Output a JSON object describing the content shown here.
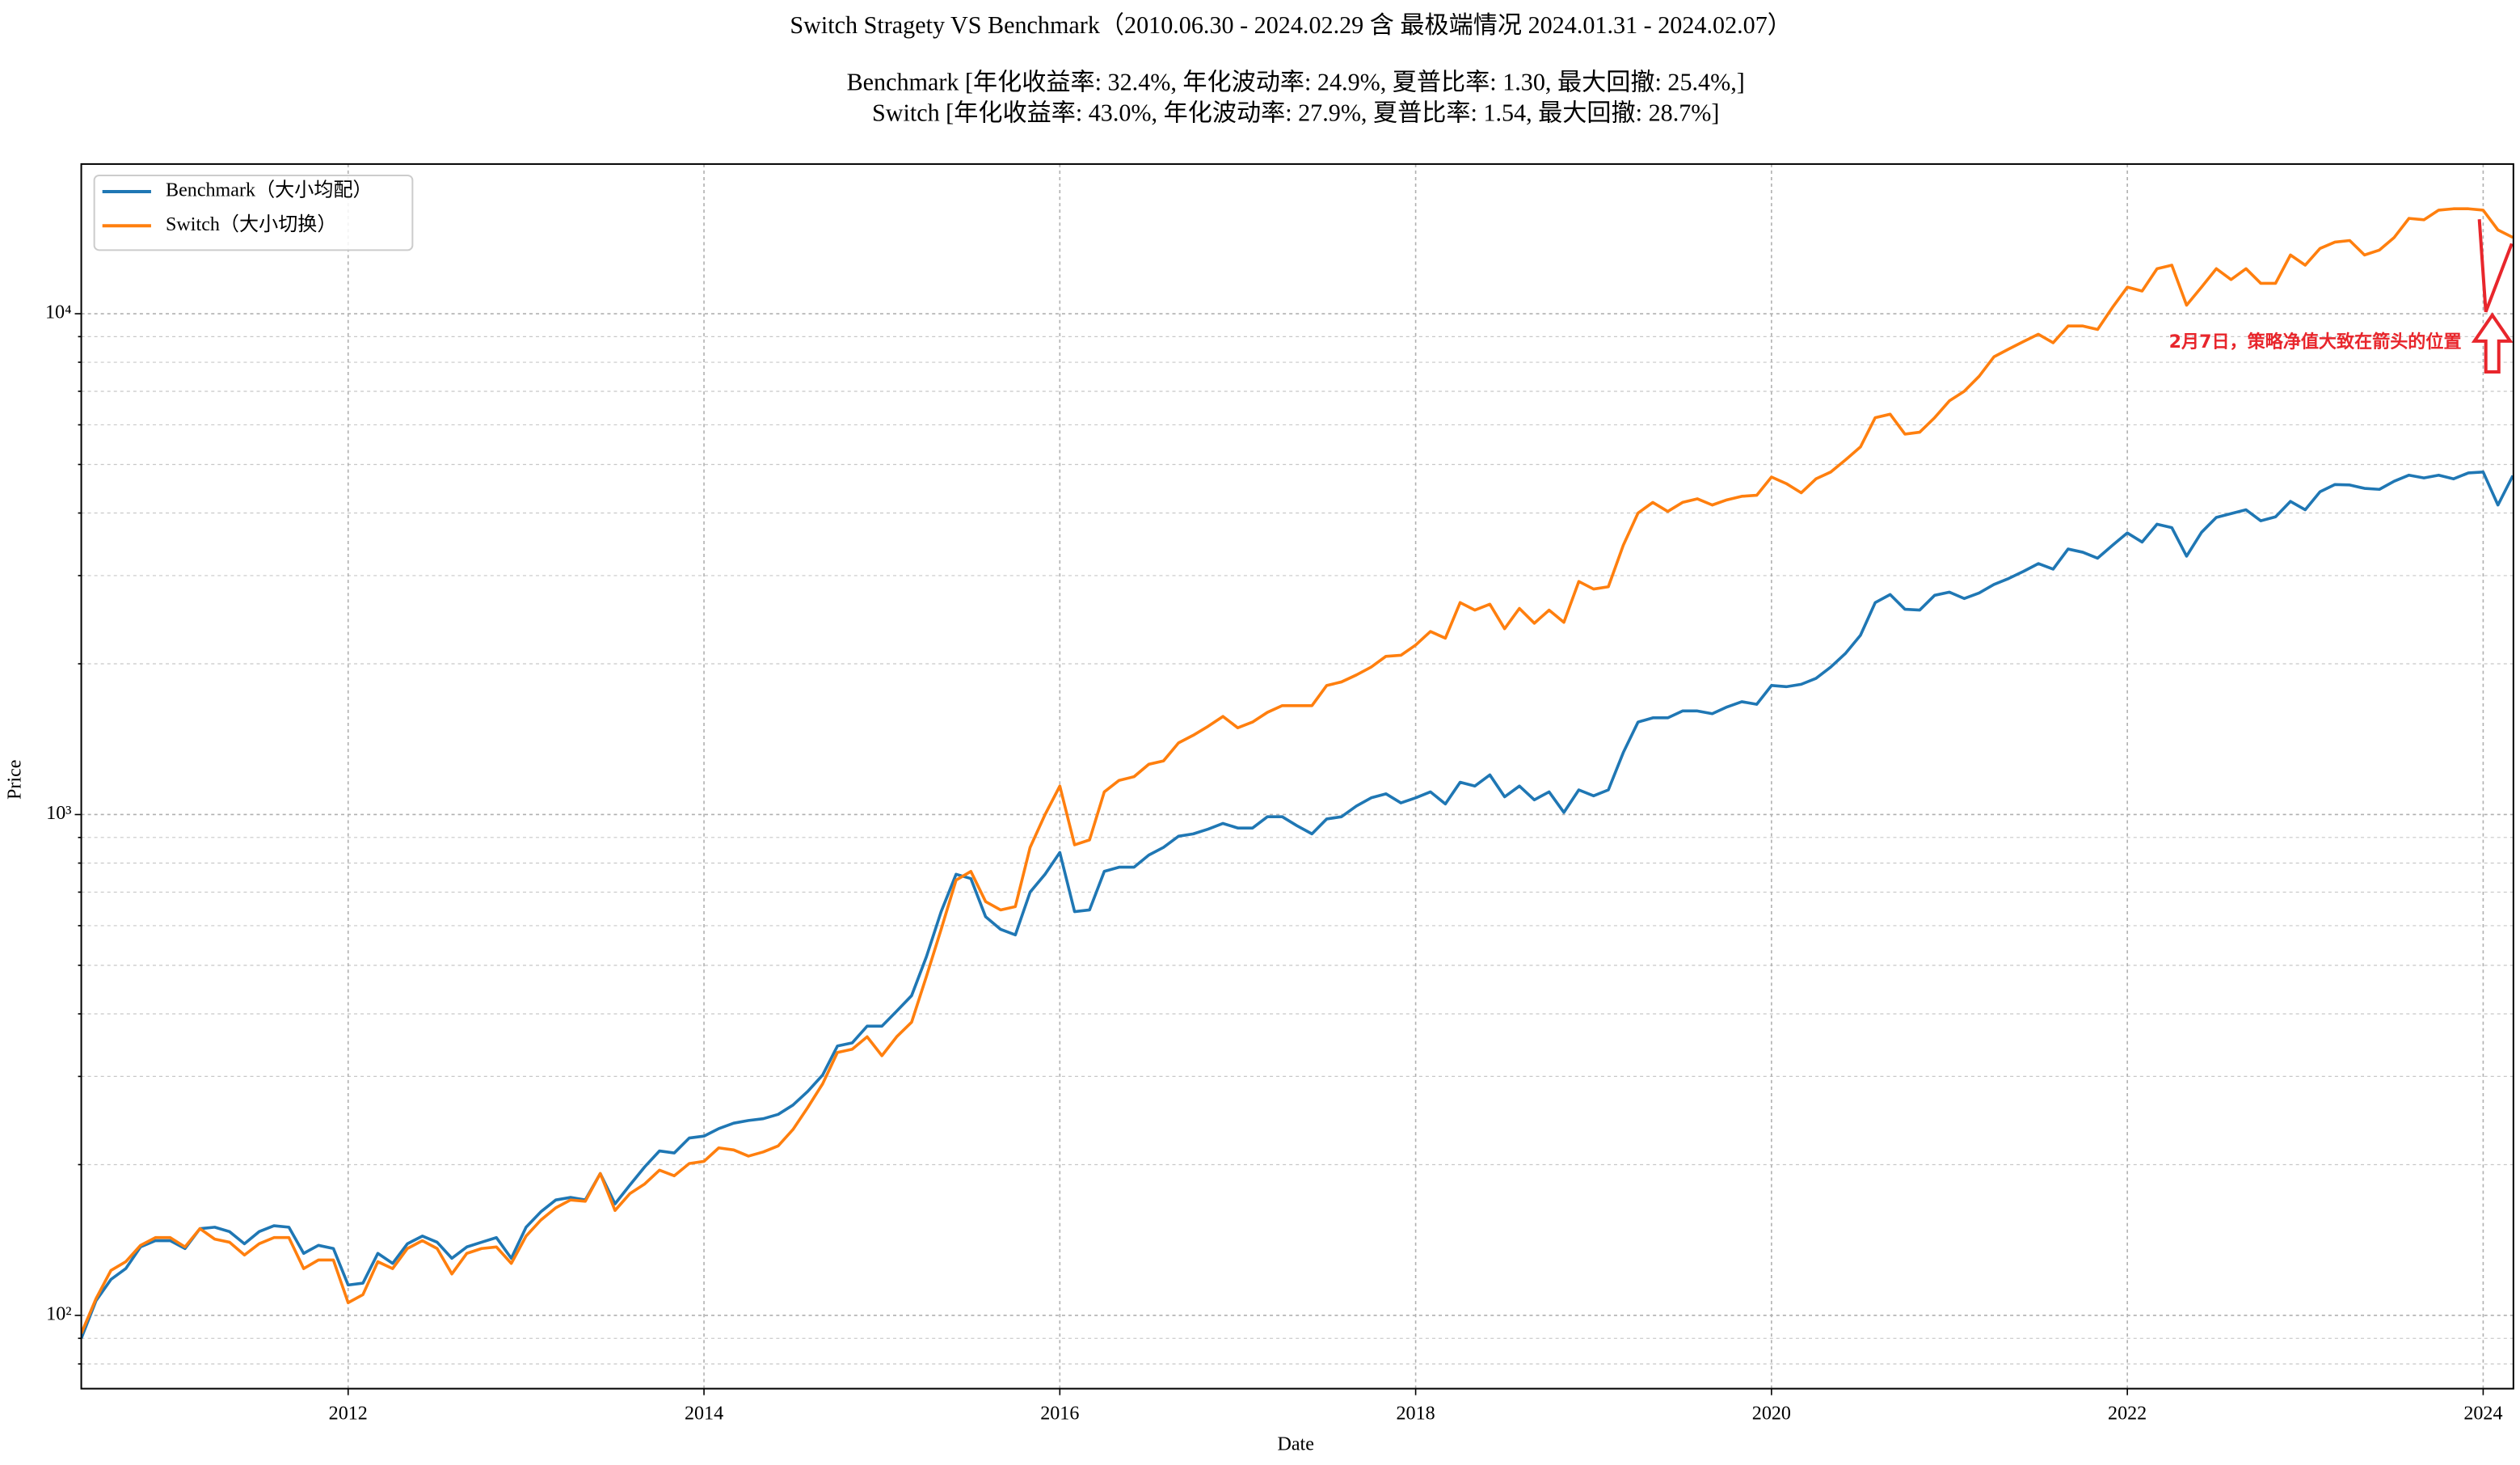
{
  "chart_data": {
    "type": "line",
    "title": "Switch Stragety VS Benchmark（2010.06.30 - 2024.02.29 含 最极端情况 2024.01.31 - 2024.02.07）",
    "subtitle": [
      "Benchmark [年化收益率: 32.4%, 年化波动率: 24.9%, 夏普比率: 1.30, 最大回撤: 25.4%,]",
      "Switch [年化收益率: 43.0%, 年化波动率: 27.9%, 夏普比率: 1.54, 最大回撤: 28.7%]"
    ],
    "xlabel": "Date",
    "ylabel": "Price",
    "annotation": "2月7日，策略净值大致在箭头的位置",
    "annotation_color": "#e8262c",
    "x": [
      2010.5,
      2010.583,
      2010.667,
      2010.75,
      2010.833,
      2010.917,
      2011,
      2011.083,
      2011.167,
      2011.25,
      2011.333,
      2011.417,
      2011.5,
      2011.583,
      2011.667,
      2011.75,
      2011.833,
      2011.917,
      2012,
      2012.083,
      2012.167,
      2012.25,
      2012.333,
      2012.417,
      2012.5,
      2012.583,
      2012.667,
      2012.75,
      2012.833,
      2012.917,
      2013,
      2013.083,
      2013.167,
      2013.25,
      2013.333,
      2013.417,
      2013.5,
      2013.583,
      2013.667,
      2013.75,
      2013.833,
      2013.917,
      2014,
      2014.083,
      2014.167,
      2014.25,
      2014.333,
      2014.417,
      2014.5,
      2014.583,
      2014.667,
      2014.75,
      2014.833,
      2014.917,
      2015,
      2015.083,
      2015.167,
      2015.25,
      2015.333,
      2015.417,
      2015.5,
      2015.583,
      2015.667,
      2015.75,
      2015.833,
      2015.917,
      2016,
      2016.083,
      2016.167,
      2016.25,
      2016.333,
      2016.417,
      2016.5,
      2016.583,
      2016.667,
      2016.75,
      2016.833,
      2016.917,
      2017,
      2017.083,
      2017.167,
      2017.25,
      2017.333,
      2017.417,
      2017.5,
      2017.583,
      2017.667,
      2017.75,
      2017.833,
      2017.917,
      2018,
      2018.083,
      2018.167,
      2018.25,
      2018.333,
      2018.417,
      2018.5,
      2018.583,
      2018.667,
      2018.75,
      2018.833,
      2018.917,
      2019,
      2019.083,
      2019.167,
      2019.25,
      2019.333,
      2019.417,
      2019.5,
      2019.583,
      2019.667,
      2019.75,
      2019.833,
      2019.917,
      2020,
      2020.083,
      2020.167,
      2020.25,
      2020.333,
      2020.417,
      2020.5,
      2020.583,
      2020.667,
      2020.75,
      2020.833,
      2020.917,
      2021,
      2021.083,
      2021.167,
      2021.25,
      2021.333,
      2021.417,
      2021.5,
      2021.583,
      2021.667,
      2021.75,
      2021.833,
      2021.917,
      2022,
      2022.083,
      2022.167,
      2022.25,
      2022.333,
      2022.417,
      2022.5,
      2022.583,
      2022.667,
      2022.75,
      2022.833,
      2022.917,
      2023,
      2023.083,
      2023.167,
      2023.25,
      2023.333,
      2023.417,
      2023.5,
      2023.583,
      2023.667,
      2023.75,
      2023.833,
      2023.917,
      2024,
      2024.083,
      2024.167
    ],
    "series": [
      {
        "name": "Benchmark（大小均配）",
        "color": "#1f77b4",
        "values": [
          90,
          107,
          118,
          124,
          137,
          141,
          141,
          136,
          149,
          150,
          147,
          139,
          147,
          151,
          150,
          133,
          138,
          136,
          115,
          116,
          133,
          127,
          139,
          144,
          140,
          130,
          137,
          140,
          143,
          130,
          150,
          161,
          170,
          172,
          170,
          192,
          167,
          182,
          198,
          213,
          211,
          226,
          228,
          236,
          242,
          245,
          247,
          252,
          263,
          280,
          302,
          345,
          350,
          378,
          378,
          405,
          435,
          520,
          640,
          760,
          745,
          625,
          590,
          575,
          700,
          760,
          840,
          640,
          645,
          770,
          785,
          785,
          830,
          860,
          905,
          915,
          935,
          960,
          940,
          940,
          990,
          990,
          950,
          915,
          980,
          990,
          1040,
          1080,
          1100,
          1055,
          1080,
          1110,
          1050,
          1160,
          1140,
          1200,
          1085,
          1140,
          1070,
          1110,
          1010,
          1120,
          1090,
          1120,
          1330,
          1530,
          1560,
          1560,
          1610,
          1610,
          1590,
          1640,
          1680,
          1660,
          1810,
          1800,
          1820,
          1870,
          1970,
          2100,
          2280,
          2650,
          2750,
          2570,
          2560,
          2740,
          2780,
          2700,
          2770,
          2880,
          2960,
          3060,
          3170,
          3090,
          3390,
          3340,
          3250,
          3450,
          3650,
          3500,
          3800,
          3740,
          3280,
          3660,
          3920,
          3990,
          4060,
          3860,
          3930,
          4220,
          4060,
          4410,
          4560,
          4550,
          4480,
          4460,
          4630,
          4760,
          4700,
          4760,
          4680,
          4810,
          4830,
          4150,
          4750
        ]
      },
      {
        "name": "Switch（大小切换）",
        "color": "#ff7f0e",
        "values": [
          92,
          108,
          123,
          128,
          138,
          143,
          143,
          137,
          149,
          142,
          140,
          132,
          139,
          143,
          143,
          124,
          129,
          129,
          106,
          110,
          128,
          124,
          136,
          141,
          136,
          121,
          133,
          136,
          137,
          127,
          144,
          155,
          164,
          170,
          169,
          192,
          162,
          175,
          183,
          195,
          190,
          201,
          203,
          216,
          214,
          208,
          212,
          218,
          235,
          260,
          290,
          335,
          340,
          360,
          330,
          360,
          385,
          475,
          590,
          740,
          770,
          670,
          645,
          655,
          860,
          1000,
          1140,
          870,
          890,
          1110,
          1170,
          1190,
          1260,
          1280,
          1390,
          1440,
          1500,
          1570,
          1490,
          1530,
          1600,
          1650,
          1650,
          1650,
          1810,
          1840,
          1900,
          1970,
          2070,
          2080,
          2180,
          2320,
          2250,
          2650,
          2560,
          2630,
          2350,
          2580,
          2410,
          2560,
          2420,
          2920,
          2820,
          2850,
          3450,
          4000,
          4200,
          4030,
          4200,
          4270,
          4150,
          4250,
          4320,
          4340,
          4720,
          4580,
          4390,
          4680,
          4830,
          5110,
          5420,
          6200,
          6300,
          5750,
          5800,
          6200,
          6700,
          7000,
          7500,
          8200,
          8500,
          8800,
          9100,
          8750,
          9450,
          9450,
          9300,
          10300,
          11300,
          11100,
          12300,
          12500,
          10400,
          11300,
          12300,
          11700,
          12300,
          11500,
          11500,
          13100,
          12500,
          13500,
          13900,
          14000,
          13100,
          13400,
          14200,
          15500,
          15400,
          16100,
          16200,
          16200,
          16100,
          14700,
          14200
        ]
      }
    ],
    "xlim": [
      2010.5,
      2024.17
    ],
    "xticks": [
      2012,
      2014,
      2016,
      2018,
      2020,
      2022,
      2024
    ],
    "ylim": [
      71.4,
      19900
    ],
    "log_y": true,
    "yticks": [
      {
        "value": 100,
        "label": "10²"
      },
      {
        "value": 1000,
        "label": "10³"
      },
      {
        "value": 10000,
        "label": "10⁴"
      }
    ],
    "yticks_minor": [
      80,
      90,
      200,
      300,
      400,
      500,
      600,
      700,
      800,
      900,
      2000,
      3000,
      4000,
      5000,
      6000,
      7000,
      8000,
      9000
    ],
    "grid": true,
    "legend": "upper left"
  }
}
